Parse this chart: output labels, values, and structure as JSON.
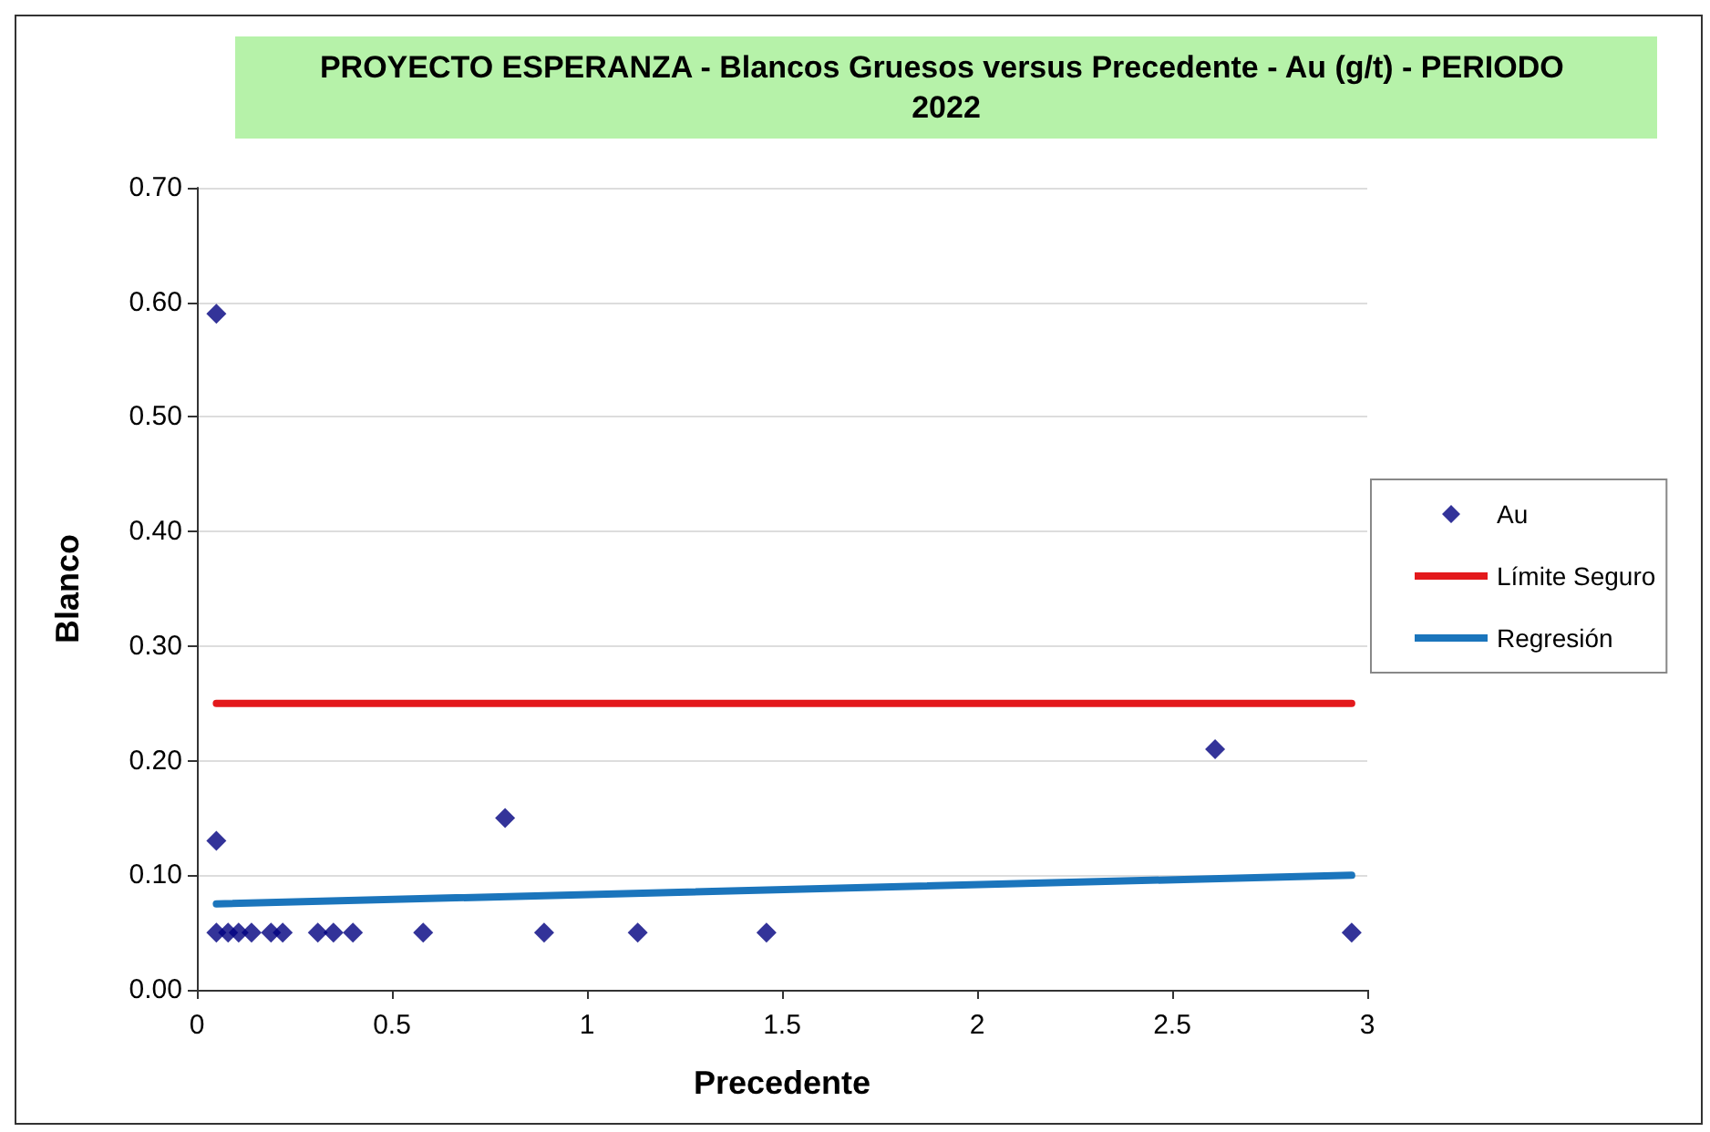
{
  "chart_data": {
    "type": "scatter",
    "title": "PROYECTO ESPERANZA - Blancos Gruesos versus Precedente - Au (g/t) - PERIODO 2022",
    "xlabel": "Precedente",
    "ylabel": "Blanco",
    "xlim": [
      0,
      3
    ],
    "xticks": [
      0,
      0.5,
      1,
      1.5,
      2,
      2.5,
      3
    ],
    "ylim": [
      0,
      0.7
    ],
    "yticks": [
      {
        "value": 0,
        "label": "0.00"
      },
      {
        "value": 0.1,
        "label": "0.10"
      },
      {
        "value": 0.2,
        "label": "0.20"
      },
      {
        "value": 0.3,
        "label": "0.30"
      },
      {
        "value": 0.4,
        "label": "0.40"
      },
      {
        "value": 0.5,
        "label": "0.50"
      },
      {
        "value": 0.6,
        "label": "0.60"
      },
      {
        "value": 0.7,
        "label": "0.70"
      }
    ],
    "grid": "y",
    "legend": "right",
    "series": [
      {
        "name": "Au",
        "marker": "diamond",
        "color": "#000080",
        "x": [
          0.05,
          0.05,
          0.05,
          0.08,
          0.107,
          0.14,
          0.19,
          0.22,
          0.31,
          0.35,
          0.4,
          0.58,
          0.79,
          0.89,
          1.13,
          1.46,
          2.61,
          2.96
        ],
        "values": [
          0.59,
          0.13,
          0.05,
          0.05,
          0.05,
          0.05,
          0.05,
          0.05,
          0.05,
          0.05,
          0.05,
          0.05,
          0.15,
          0.05,
          0.05,
          0.05,
          0.21,
          0.05
        ]
      },
      {
        "name": "Límite Seguro",
        "type": "line",
        "marker": "none",
        "color": "#e3191c",
        "x": [
          0.05,
          2.96
        ],
        "values": [
          0.25,
          0.25
        ]
      },
      {
        "name": "Regresión",
        "type": "line",
        "marker": "none",
        "color": "#1b75bc",
        "x": [
          0.05,
          2.96
        ],
        "values": [
          0.075,
          0.1
        ]
      }
    ]
  }
}
